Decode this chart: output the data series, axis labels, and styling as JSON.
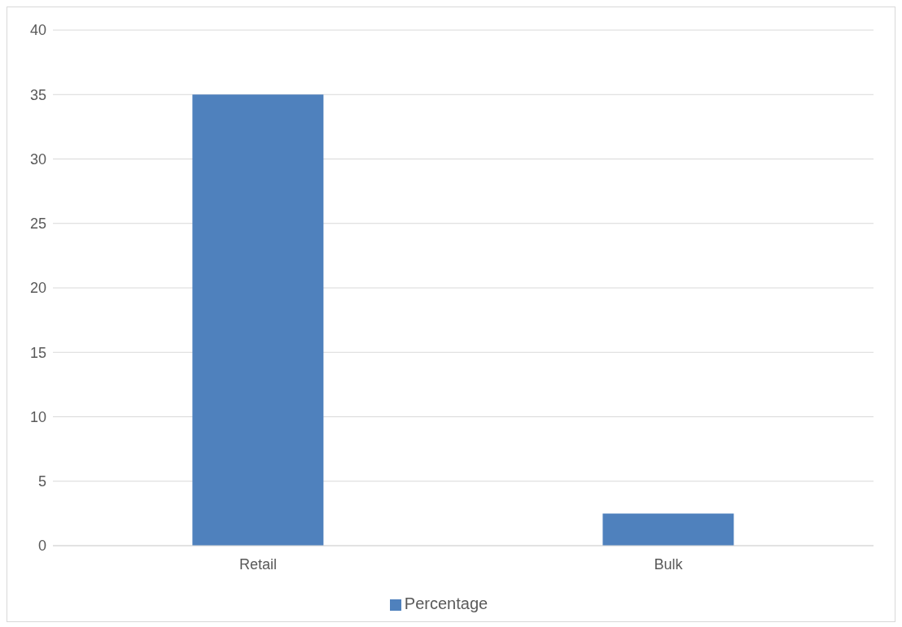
{
  "chart_data": {
    "type": "bar",
    "categories": [
      "Retail",
      "Bulk"
    ],
    "series": [
      {
        "name": "Percentage",
        "color": "#4f81bd",
        "values": [
          35,
          2.5
        ]
      }
    ],
    "ylim": [
      0,
      40
    ],
    "yticks": [
      0,
      5,
      10,
      15,
      20,
      25,
      30,
      35,
      40
    ],
    "grid": "y",
    "legend": "bottom"
  }
}
